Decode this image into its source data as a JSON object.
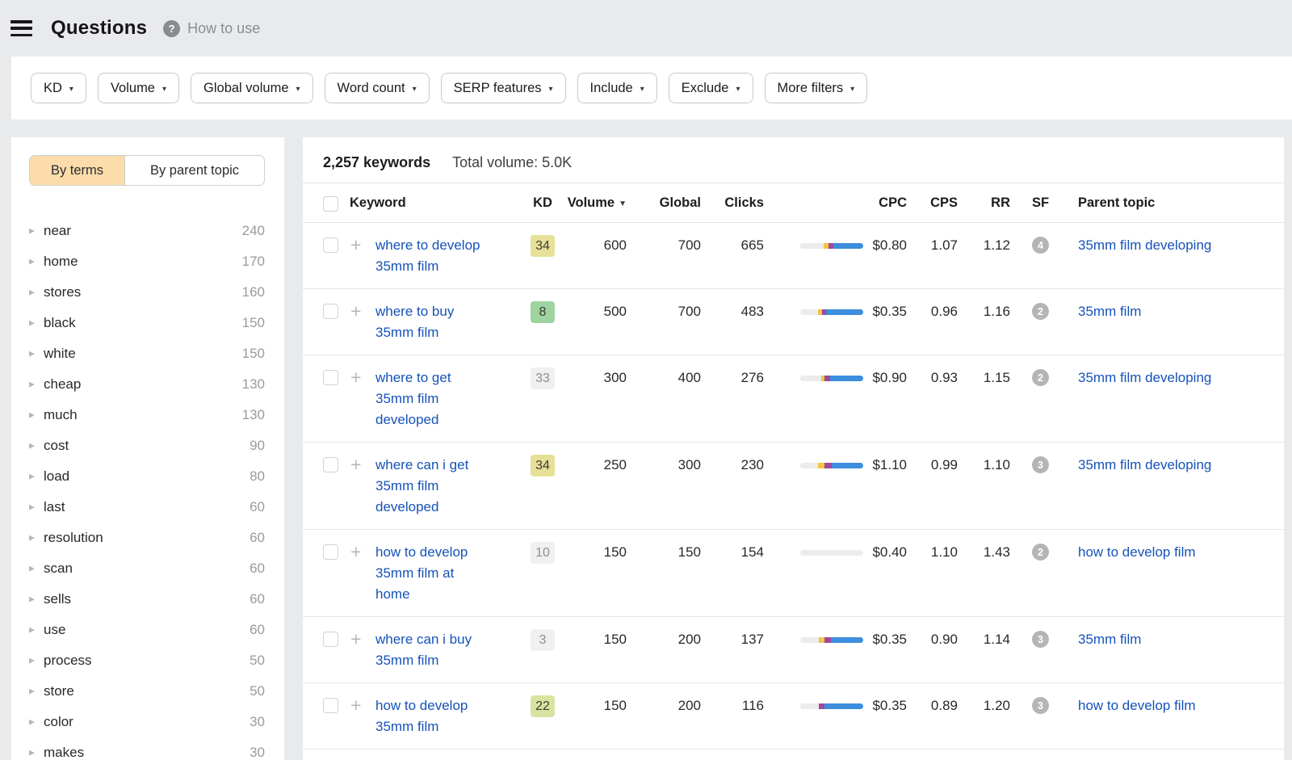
{
  "header": {
    "title": "Questions",
    "help_icon": "?",
    "help_label": "How to use"
  },
  "filters": {
    "caret": "▾",
    "buttons": [
      "KD",
      "Volume",
      "Global volume",
      "Word count",
      "SERP features",
      "Include",
      "Exclude",
      "More filters"
    ]
  },
  "sidebar": {
    "expand_icon": "▶",
    "tabs": [
      {
        "label": "By terms",
        "active": true
      },
      {
        "label": "By parent topic",
        "active": false
      }
    ],
    "items": [
      {
        "term": "near",
        "count": "240"
      },
      {
        "term": "home",
        "count": "170"
      },
      {
        "term": "stores",
        "count": "160"
      },
      {
        "term": "black",
        "count": "150"
      },
      {
        "term": "white",
        "count": "150"
      },
      {
        "term": "cheap",
        "count": "130"
      },
      {
        "term": "much",
        "count": "130"
      },
      {
        "term": "cost",
        "count": "90"
      },
      {
        "term": "load",
        "count": "80"
      },
      {
        "term": "last",
        "count": "60"
      },
      {
        "term": "resolution",
        "count": "60"
      },
      {
        "term": "scan",
        "count": "60"
      },
      {
        "term": "sells",
        "count": "60"
      },
      {
        "term": "use",
        "count": "60"
      },
      {
        "term": "process",
        "count": "50"
      },
      {
        "term": "store",
        "count": "50"
      },
      {
        "term": "color",
        "count": "30"
      },
      {
        "term": "makes",
        "count": "30"
      }
    ]
  },
  "table": {
    "stats": {
      "keywords_total": "2,257 keywords",
      "total_volume": "Total volume: 5.0K"
    },
    "sort_arrow": "▼",
    "add_icon": "+",
    "columns": {
      "keyword": "Keyword",
      "kd": "KD",
      "volume": "Volume",
      "global": "Global",
      "clicks": "Clicks",
      "cpc": "CPC",
      "cps": "CPS",
      "rr": "RR",
      "sf": "SF",
      "parent_topic": "Parent topic"
    },
    "rows": [
      {
        "keyword": "where to develop 35mm film",
        "keyword_lines": [
          "where to develop",
          "35mm film"
        ],
        "kd": "34",
        "kd_color": "yellow",
        "volume": "600",
        "global": "700",
        "clicks": "665",
        "clicks_bar": {
          "empty": 37,
          "yellow": 8,
          "purple": 8,
          "blue": 47
        },
        "cpc": "$0.80",
        "cps": "1.07",
        "rr": "1.12",
        "sf": "4",
        "parent_topic": "35mm film developing"
      },
      {
        "keyword": "where to buy 35mm film",
        "keyword_lines": [
          "where to buy",
          "35mm film"
        ],
        "kd": "8",
        "kd_color": "green",
        "volume": "500",
        "global": "700",
        "clicks": "483",
        "clicks_bar": {
          "empty": 28,
          "yellow": 6,
          "purple": 7,
          "blue": 59
        },
        "cpc": "$0.35",
        "cps": "0.96",
        "rr": "1.16",
        "sf": "2",
        "parent_topic": "35mm film"
      },
      {
        "keyword": "where to get 35mm film developed",
        "keyword_lines": [
          "where to get",
          "35mm film",
          "developed"
        ],
        "kd": "33",
        "kd_color": "gray",
        "volume": "300",
        "global": "400",
        "clicks": "276",
        "clicks_bar": {
          "empty": 33,
          "yellow": 6,
          "purple": 8,
          "blue": 53
        },
        "cpc": "$0.90",
        "cps": "0.93",
        "rr": "1.15",
        "sf": "2",
        "parent_topic": "35mm film developing"
      },
      {
        "keyword": "where can i get 35mm film developed",
        "keyword_lines": [
          "where can i get",
          "35mm film",
          "developed"
        ],
        "kd": "34",
        "kd_color": "yellow",
        "volume": "250",
        "global": "300",
        "clicks": "230",
        "clicks_bar": {
          "empty": 28,
          "yellow": 10,
          "purple": 12,
          "blue": 50
        },
        "cpc": "$1.10",
        "cps": "0.99",
        "rr": "1.10",
        "sf": "3",
        "parent_topic": "35mm film developing"
      },
      {
        "keyword": "how to develop 35mm film at home",
        "keyword_lines": [
          "how to develop",
          "35mm film at",
          "home"
        ],
        "kd": "10",
        "kd_color": "gray",
        "volume": "150",
        "global": "150",
        "clicks": "154",
        "clicks_bar": {
          "empty": 100,
          "yellow": 0,
          "purple": 0,
          "blue": 0
        },
        "cpc": "$0.40",
        "cps": "1.10",
        "rr": "1.43",
        "sf": "2",
        "parent_topic": "how to develop film"
      },
      {
        "keyword": "where can i buy 35mm film",
        "keyword_lines": [
          "where can i buy",
          "35mm film"
        ],
        "kd": "3",
        "kd_color": "gray",
        "volume": "150",
        "global": "200",
        "clicks": "137",
        "clicks_bar": {
          "empty": 30,
          "yellow": 8,
          "purple": 11,
          "blue": 51
        },
        "cpc": "$0.35",
        "cps": "0.90",
        "rr": "1.14",
        "sf": "3",
        "parent_topic": "35mm film"
      },
      {
        "keyword": "how to develop 35mm film",
        "keyword_lines": [
          "how to develop",
          "35mm film"
        ],
        "kd": "22",
        "kd_color": "lime",
        "volume": "150",
        "global": "200",
        "clicks": "116",
        "clicks_bar": {
          "empty": 29,
          "yellow": 0,
          "purple": 10,
          "blue": 61
        },
        "cpc": "$0.35",
        "cps": "0.89",
        "rr": "1.20",
        "sf": "3",
        "parent_topic": "how to develop film"
      }
    ]
  },
  "colors": {
    "link": "#1552b8",
    "tab_active": "#fbdcaa",
    "kd_yellow": "#e7e098",
    "kd_green": "#9fd3a0",
    "kd_lime": "#d9e3a1",
    "kd_gray": "#f0f0f0",
    "bar_empty": "#ececec",
    "bar_yellow": "#f2c643",
    "bar_purple": "#9c4a9d",
    "bar_blue": "#3d8edc",
    "sf_circle": "#b5b5b7"
  }
}
